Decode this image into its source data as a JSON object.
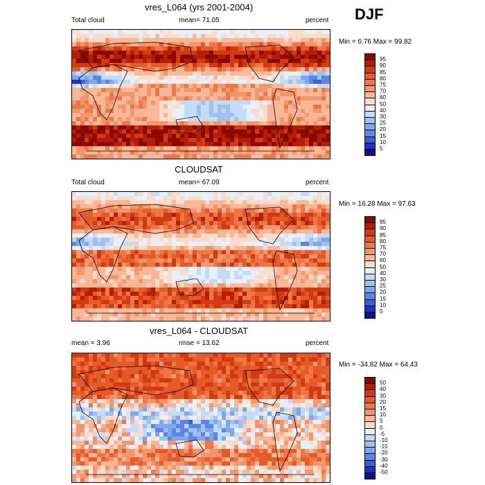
{
  "season": "DJF",
  "panels": [
    {
      "title": "vres_L064 (yrs 2001-2004)",
      "left_label": "Total cloud",
      "center_label": "mean=  71.05",
      "right_label": "percent",
      "minmax": "Min =   6.76 Max =  99.82",
      "levels": [
        "95",
        "90",
        "85",
        "80",
        "75",
        "70",
        "60",
        "50",
        "40",
        "30",
        "25",
        "20",
        "15",
        "10",
        "5"
      ],
      "colors": [
        "#8b0a00",
        "#b51e05",
        "#d23a12",
        "#e45a28",
        "#ee7748",
        "#f4966c",
        "#f8b797",
        "#fbdcca",
        "#e6f0fb",
        "#c4dbf6",
        "#9ec1f0",
        "#7ea7ec",
        "#5a86e6",
        "#3a5fdc",
        "#1f33c8",
        "#0b1590"
      ]
    },
    {
      "title": "CLOUDSAT",
      "left_label": "Total cloud",
      "center_label": "mean=  67.09",
      "right_label": "percent",
      "minmax": "Min =  16.28 Max =  97.63",
      "levels": [
        "95",
        "90",
        "85",
        "80",
        "75",
        "70",
        "60",
        "50",
        "40",
        "30",
        "25",
        "20",
        "15",
        "10",
        "5"
      ],
      "colors": [
        "#8b0a00",
        "#b51e05",
        "#d23a12",
        "#e45a28",
        "#ee7748",
        "#f4966c",
        "#f8b797",
        "#fbdcca",
        "#e6f0fb",
        "#c4dbf6",
        "#9ec1f0",
        "#7ea7ec",
        "#5a86e6",
        "#3a5fdc",
        "#1f33c8",
        "#0b1590"
      ]
    },
    {
      "title": "vres_L064 - CLOUDSAT",
      "left_label": "mean =   3.96",
      "center_label": "rmse =  13.62",
      "right_label": "percent",
      "minmax": "Min = -34.82 Max =  64.43",
      "levels": [
        "50",
        "40",
        "30",
        "20",
        "15",
        "10",
        "5",
        "0",
        "-5",
        "-10",
        "-15",
        "-20",
        "-30",
        "-40",
        "-50"
      ],
      "colors": [
        "#8b0a00",
        "#b51e05",
        "#d23a12",
        "#e45a28",
        "#ee7748",
        "#f4966c",
        "#f8b797",
        "#fbdcca",
        "#e6f0fb",
        "#c4dbf6",
        "#9ec1f0",
        "#7ea7ec",
        "#5a86e6",
        "#3a5fdc",
        "#1f33c8",
        "#0b1590"
      ]
    }
  ],
  "chart_data": [
    {
      "type": "heatmap",
      "title": "vres_L064 (yrs 2001-2004)",
      "variable": "Total cloud",
      "units": "percent",
      "mean": 71.05,
      "min": 6.76,
      "max": 99.82,
      "contour_levels": [
        5,
        10,
        15,
        20,
        25,
        30,
        40,
        50,
        60,
        70,
        75,
        80,
        85,
        90,
        95
      ]
    },
    {
      "type": "heatmap",
      "title": "CLOUDSAT",
      "variable": "Total cloud",
      "units": "percent",
      "mean": 67.09,
      "min": 16.28,
      "max": 97.63,
      "contour_levels": [
        5,
        10,
        15,
        20,
        25,
        30,
        40,
        50,
        60,
        70,
        75,
        80,
        85,
        90,
        95
      ]
    },
    {
      "type": "heatmap",
      "title": "vres_L064 - CLOUDSAT",
      "units": "percent",
      "mean": 3.96,
      "rmse": 13.62,
      "min": -34.82,
      "max": 64.43,
      "contour_levels": [
        -50,
        -40,
        -30,
        -20,
        -15,
        -10,
        -5,
        0,
        5,
        10,
        15,
        20,
        30,
        40,
        50
      ]
    }
  ]
}
